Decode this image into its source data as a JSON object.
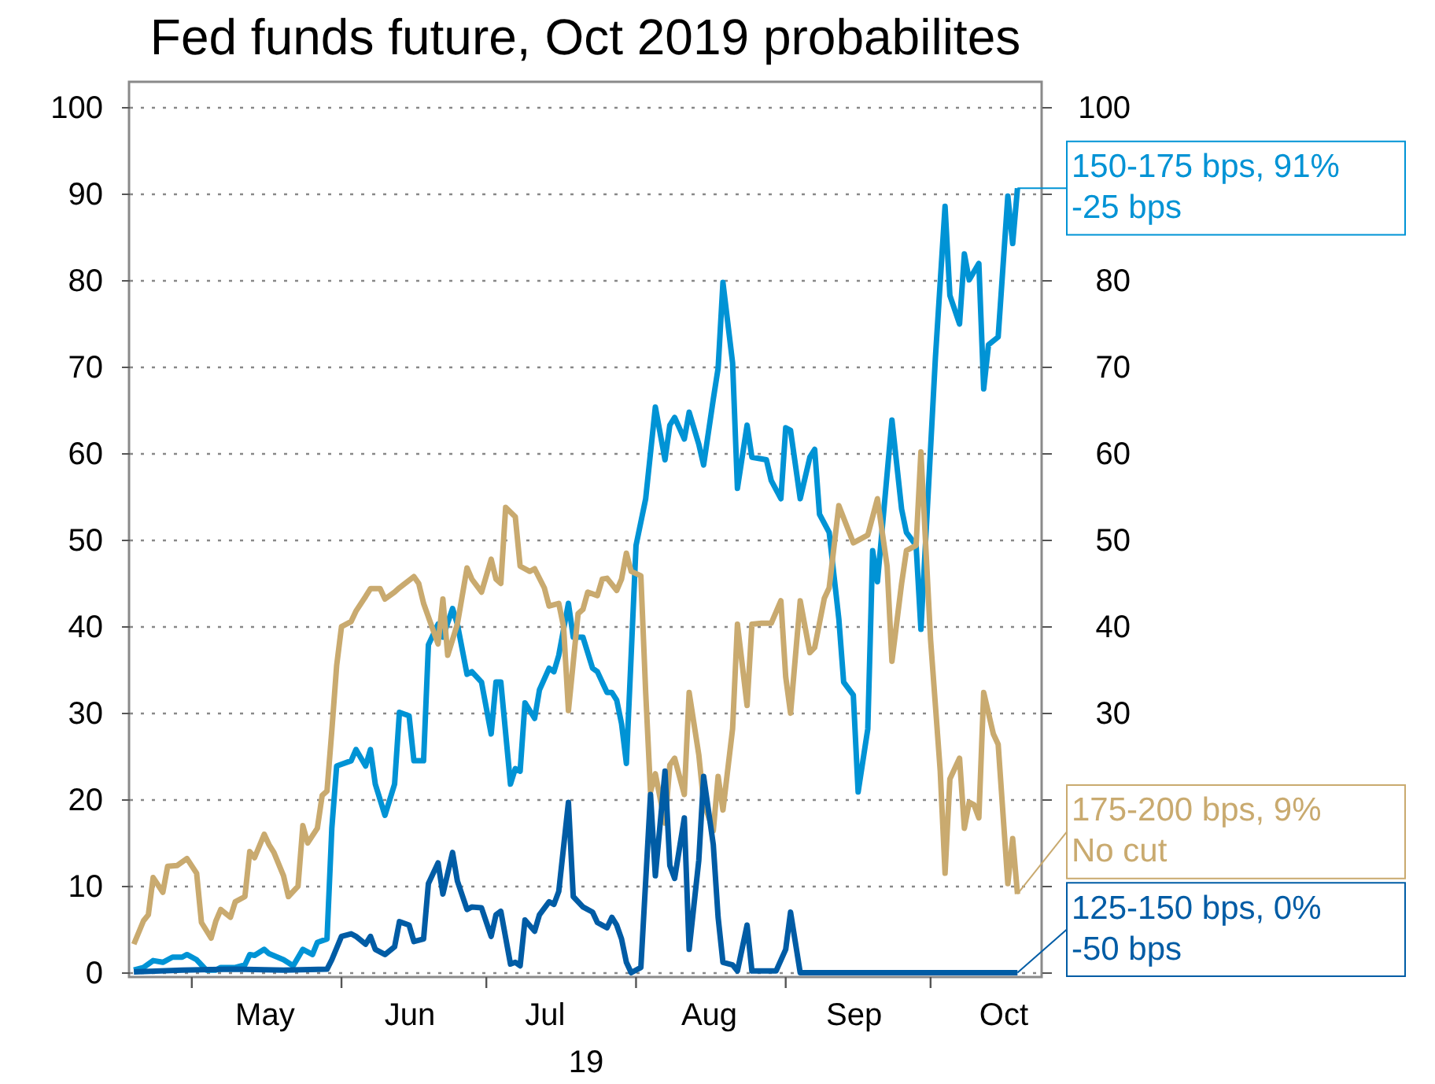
{
  "chart_data": {
    "type": "line",
    "title": "Fed funds future, Oct 2019 probabilites",
    "xlabel": "19",
    "xlim": [
      "2019-04-18",
      "2019-10-24"
    ],
    "xticks": [
      {
        "value": "2019-05-01",
        "label": null
      },
      {
        "value": "2019-05-16",
        "label": "May"
      },
      {
        "value": "2019-06-01",
        "label": null
      },
      {
        "value": "2019-06-15",
        "label": "Jun"
      },
      {
        "value": "2019-07-01",
        "label": null
      },
      {
        "value": "2019-07-13",
        "label": "Jul"
      },
      {
        "value": "2019-08-01",
        "label": null
      },
      {
        "value": "2019-08-16",
        "label": "Aug"
      },
      {
        "value": "2019-09-01",
        "label": null
      },
      {
        "value": "2019-09-15",
        "label": "Sep"
      },
      {
        "value": "2019-10-01",
        "label": null
      },
      {
        "value": "2019-10-16",
        "label": "Oct"
      }
    ],
    "ylim": [
      -0.5,
      103
    ],
    "yticks": [
      0,
      10,
      20,
      30,
      40,
      50,
      60,
      70,
      80,
      90,
      100
    ],
    "y2lim": [
      -0.5,
      103
    ],
    "y2ticks": [
      {
        "value": 0,
        "label": null
      },
      {
        "value": 10,
        "label": null
      },
      {
        "value": 20,
        "label": null
      },
      30,
      40,
      50,
      60,
      70,
      80,
      {
        "value": 90,
        "label": null
      },
      100
    ],
    "grid": "y",
    "line_style": "solid",
    "marker": "none",
    "series": [
      {
        "color": "#0093d5",
        "x": [
          "2019-04-19",
          "2019-04-21",
          "2019-04-23",
          "2019-04-25",
          "2019-04-27",
          "2019-04-29",
          "2019-04-30",
          "2019-05-02",
          "2019-05-04",
          "2019-05-06",
          "2019-05-07",
          "2019-05-10",
          "2019-05-12",
          "2019-05-13",
          "2019-05-14",
          "2019-05-16",
          "2019-05-17",
          "2019-05-20",
          "2019-05-22",
          "2019-05-24",
          "2019-05-26",
          "2019-05-27",
          "2019-05-29",
          "2019-05-30",
          "2019-05-31",
          "2019-06-03",
          "2019-06-04",
          "2019-06-06",
          "2019-06-07",
          "2019-06-08",
          "2019-06-10",
          "2019-06-12",
          "2019-06-13",
          "2019-06-15",
          "2019-06-16",
          "2019-06-18",
          "2019-06-19",
          "2019-06-21",
          "2019-06-22",
          "2019-06-24",
          "2019-06-25",
          "2019-06-27",
          "2019-06-28",
          "2019-06-30",
          "2019-07-02",
          "2019-07-03",
          "2019-07-04",
          "2019-07-06",
          "2019-07-07",
          "2019-07-08",
          "2019-07-09",
          "2019-07-11",
          "2019-07-12",
          "2019-07-14",
          "2019-07-15",
          "2019-07-16",
          "2019-07-18",
          "2019-07-19",
          "2019-07-21",
          "2019-07-23",
          "2019-07-24",
          "2019-07-26",
          "2019-07-27",
          "2019-07-28",
          "2019-07-29",
          "2019-07-30",
          "2019-08-01",
          "2019-08-03",
          "2019-08-05",
          "2019-08-07",
          "2019-08-08",
          "2019-08-09",
          "2019-08-11",
          "2019-08-12",
          "2019-08-14",
          "2019-08-15",
          "2019-08-17",
          "2019-08-18",
          "2019-08-19",
          "2019-08-21",
          "2019-08-22",
          "2019-08-24",
          "2019-08-25",
          "2019-08-28",
          "2019-08-29",
          "2019-08-31",
          "2019-09-01",
          "2019-09-02",
          "2019-09-04",
          "2019-09-06",
          "2019-09-07",
          "2019-09-08",
          "2019-09-10",
          "2019-09-12",
          "2019-09-13",
          "2019-09-15",
          "2019-09-16",
          "2019-09-18",
          "2019-09-19",
          "2019-09-20",
          "2019-09-23",
          "2019-09-25",
          "2019-09-26",
          "2019-09-28",
          "2019-09-29",
          "2019-10-02",
          "2019-10-04",
          "2019-10-05",
          "2019-10-07",
          "2019-10-08",
          "2019-10-09",
          "2019-10-11",
          "2019-10-12",
          "2019-10-13",
          "2019-10-15",
          "2019-10-17",
          "2019-10-18",
          "2019-10-19"
        ],
        "values": [
          0.3,
          0.6,
          1.4,
          1.2,
          1.8,
          1.8,
          2.1,
          1.5,
          0.3,
          0.3,
          0.6,
          0.6,
          0.9,
          2.1,
          2,
          2.7,
          2.2,
          1.5,
          0.8,
          2.7,
          2.1,
          3.5,
          3.9,
          16.7,
          23.9,
          24.5,
          25.8,
          23.9,
          25.8,
          21.8,
          18.2,
          21.8,
          30.1,
          29.7,
          24.5,
          24.5,
          37.9,
          40.3,
          38.8,
          42.1,
          40.3,
          34.5,
          34.8,
          33.6,
          27.6,
          33.6,
          33.6,
          21.8,
          23.6,
          23.3,
          31.2,
          29.4,
          32.7,
          35.2,
          34.8,
          36.7,
          42.7,
          38.8,
          38.8,
          35.2,
          34.8,
          32.4,
          32.4,
          31.5,
          28.8,
          24.2,
          49.4,
          54.8,
          65.4,
          59.3,
          63.3,
          64.2,
          61.7,
          64.8,
          61.1,
          58.7,
          66.3,
          69.9,
          79.8,
          70.5,
          56,
          63.3,
          59.6,
          59.3,
          56.9,
          54.8,
          63,
          62.7,
          54.8,
          59.6,
          60.5,
          53,
          50.9,
          40.9,
          33.6,
          32.1,
          20.9,
          28.2,
          48.8,
          45.2,
          63.9,
          53.6,
          50.9,
          49.4,
          39.7,
          71.1,
          88.6,
          78.3,
          75,
          83.1,
          80.1,
          82,
          67.5,
          72.6,
          73.5,
          89.8,
          84.3,
          90.7
        ]
      },
      {
        "color": "#c9aa6f",
        "x": [
          "2019-04-19",
          "2019-04-21",
          "2019-04-22",
          "2019-04-23",
          "2019-04-25",
          "2019-04-26",
          "2019-04-28",
          "2019-04-30",
          "2019-05-02",
          "2019-05-03",
          "2019-05-05",
          "2019-05-06",
          "2019-05-07",
          "2019-05-09",
          "2019-05-10",
          "2019-05-12",
          "2019-05-13",
          "2019-05-14",
          "2019-05-16",
          "2019-05-17",
          "2019-05-18",
          "2019-05-20",
          "2019-05-21",
          "2019-05-23",
          "2019-05-24",
          "2019-05-25",
          "2019-05-27",
          "2019-05-28",
          "2019-05-29",
          "2019-05-30",
          "2019-05-31",
          "2019-06-01",
          "2019-06-03",
          "2019-06-04",
          "2019-06-06",
          "2019-06-07",
          "2019-06-09",
          "2019-06-10",
          "2019-06-12",
          "2019-06-13",
          "2019-06-16",
          "2019-06-17",
          "2019-06-18",
          "2019-06-21",
          "2019-06-22",
          "2019-06-23",
          "2019-06-25",
          "2019-06-27",
          "2019-06-28",
          "2019-06-30",
          "2019-07-02",
          "2019-07-03",
          "2019-07-04",
          "2019-07-05",
          "2019-07-07",
          "2019-07-08",
          "2019-07-10",
          "2019-07-11",
          "2019-07-13",
          "2019-07-14",
          "2019-07-16",
          "2019-07-17",
          "2019-07-18",
          "2019-07-20",
          "2019-07-21",
          "2019-07-22",
          "2019-07-24",
          "2019-07-25",
          "2019-07-26",
          "2019-07-28",
          "2019-07-29",
          "2019-07-30",
          "2019-07-31",
          "2019-08-02",
          "2019-08-03",
          "2019-08-04",
          "2019-08-05",
          "2019-08-07",
          "2019-08-08",
          "2019-08-09",
          "2019-08-11",
          "2019-08-12",
          "2019-08-14",
          "2019-08-15",
          "2019-08-17",
          "2019-08-18",
          "2019-08-19",
          "2019-08-21",
          "2019-08-22",
          "2019-08-24",
          "2019-08-25",
          "2019-08-27",
          "2019-08-29",
          "2019-08-31",
          "2019-09-01",
          "2019-09-02",
          "2019-09-04",
          "2019-09-06",
          "2019-09-07",
          "2019-09-09",
          "2019-09-10",
          "2019-09-12",
          "2019-09-15",
          "2019-09-18",
          "2019-09-20",
          "2019-09-22",
          "2019-09-23",
          "2019-09-25",
          "2019-09-26",
          "2019-09-28",
          "2019-09-29",
          "2019-10-01",
          "2019-10-03",
          "2019-10-04",
          "2019-10-05",
          "2019-10-07",
          "2019-10-08",
          "2019-10-09",
          "2019-10-10",
          "2019-10-11",
          "2019-10-12",
          "2019-10-14",
          "2019-10-15",
          "2019-10-17",
          "2019-10-18",
          "2019-10-19"
        ],
        "values": [
          3.3,
          6,
          6.7,
          11,
          9.3,
          12.3,
          12.4,
          13.2,
          11.5,
          5.8,
          4,
          6,
          7.3,
          6.4,
          8.2,
          8.8,
          14,
          13.3,
          16,
          14.8,
          13.9,
          11.2,
          8.8,
          10,
          17,
          15,
          16.7,
          20.5,
          21,
          28,
          35.5,
          40,
          40.6,
          41.8,
          43.5,
          44.4,
          44.4,
          43.2,
          44,
          44.5,
          45.8,
          45,
          42.7,
          38,
          43.2,
          36.7,
          40.3,
          46.8,
          45.5,
          44,
          47.8,
          45.5,
          45,
          53.8,
          52.7,
          47,
          46.4,
          46.7,
          44.5,
          42.4,
          42.7,
          40,
          30.3,
          41.5,
          42,
          44,
          43.6,
          45.5,
          45.6,
          44.2,
          45.5,
          48.5,
          46.4,
          45.9,
          32.4,
          20.9,
          23,
          17.3,
          24,
          24.8,
          20.6,
          32.4,
          25.2,
          19.7,
          16.4,
          22.7,
          18.8,
          28.2,
          40.3,
          30.9,
          40.3,
          40.4,
          40.4,
          43,
          34.2,
          30,
          43,
          37,
          37.6,
          43.3,
          44.5,
          54,
          49.7,
          50.6,
          54.8,
          47,
          36,
          45,
          48.8,
          49.4,
          60.2,
          38.5,
          23.3,
          11.5,
          22.4,
          24.8,
          16.7,
          19.7,
          19.4,
          17.9,
          32.4,
          27.6,
          26.4,
          10.3,
          15.5,
          9.1
        ]
      },
      {
        "color": "#005ca5",
        "x": [
          "2019-04-19",
          "2019-04-29",
          "2019-05-10",
          "2019-05-20",
          "2019-05-29",
          "2019-05-30",
          "2019-06-01",
          "2019-06-03",
          "2019-06-04",
          "2019-06-06",
          "2019-06-07",
          "2019-06-08",
          "2019-06-10",
          "2019-06-12",
          "2019-06-13",
          "2019-06-15",
          "2019-06-16",
          "2019-06-18",
          "2019-06-19",
          "2019-06-21",
          "2019-06-22",
          "2019-06-24",
          "2019-06-25",
          "2019-06-27",
          "2019-06-28",
          "2019-06-30",
          "2019-07-02",
          "2019-07-03",
          "2019-07-04",
          "2019-07-06",
          "2019-07-07",
          "2019-07-08",
          "2019-07-09",
          "2019-07-11",
          "2019-07-12",
          "2019-07-14",
          "2019-07-15",
          "2019-07-16",
          "2019-07-18",
          "2019-07-19",
          "2019-07-21",
          "2019-07-23",
          "2019-07-24",
          "2019-07-26",
          "2019-07-27",
          "2019-07-28",
          "2019-07-29",
          "2019-07-30",
          "2019-07-31",
          "2019-08-02",
          "2019-08-04",
          "2019-08-05",
          "2019-08-07",
          "2019-08-08",
          "2019-08-09",
          "2019-08-11",
          "2019-08-12",
          "2019-08-14",
          "2019-08-15",
          "2019-08-17",
          "2019-08-18",
          "2019-08-19",
          "2019-08-21",
          "2019-08-22",
          "2019-08-24",
          "2019-08-25",
          "2019-08-30",
          "2019-09-01",
          "2019-09-02",
          "2019-09-04",
          "2019-10-19"
        ],
        "values": [
          0.1,
          0.3,
          0.4,
          0.3,
          0.4,
          1.5,
          4.2,
          4.5,
          4.2,
          3.3,
          4.2,
          2.7,
          2.1,
          3,
          5.9,
          5.5,
          3.6,
          3.9,
          10.3,
          12.7,
          9.1,
          13.9,
          10.6,
          7.3,
          7.6,
          7.5,
          4.2,
          6.7,
          7.1,
          1,
          1.2,
          0.8,
          6.1,
          4.8,
          6.7,
          8.2,
          7.9,
          9.4,
          19.7,
          8.8,
          7.6,
          7,
          5.8,
          5.2,
          6.4,
          5.5,
          3.9,
          1.2,
          0,
          0.6,
          20.6,
          11.2,
          23.3,
          12.4,
          10.9,
          17.9,
          2.7,
          13,
          22.7,
          14.8,
          6.4,
          1.2,
          0.9,
          0.2,
          5.5,
          0.2,
          0.2,
          2.7,
          7,
          0,
          0
        ]
      }
    ],
    "annotations": [
      {
        "text": "150-175 bps, 91%\n-25 bps",
        "x": "2019-10-19",
        "y": 90.7
      },
      {
        "text": "175-200 bps, 9%\nNo cut",
        "x": "2019-10-19",
        "y": 9.1
      },
      {
        "text": "125-150 bps, 0%\n-50 bps",
        "x": "2019-10-19",
        "y": 0
      }
    ]
  }
}
